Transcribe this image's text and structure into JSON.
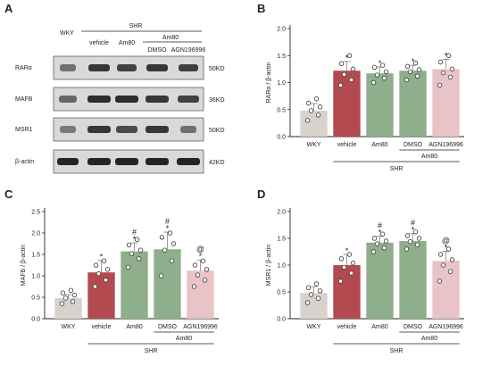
{
  "colors": {
    "WKY": "#d7d2cc",
    "vehicle": "#b24a4f",
    "Am80": "#8fae8b",
    "DMSO": "#8fae8b",
    "AGN196996": "#e8c3c7",
    "dot": "#ffffff",
    "blot_band": "#1a1a1a",
    "blot_bg": "#d9d9d9"
  },
  "panel_letters": [
    "A",
    "B",
    "C",
    "D"
  ],
  "blot": {
    "group_header": "SHR",
    "subgroup_header": "Am80",
    "lane_labels": [
      "WKY",
      "vehicle",
      "Am80",
      "DMSO",
      "AGN196996"
    ],
    "rows": [
      {
        "protein": "RARα",
        "size": "50KD"
      },
      {
        "protein": "MAFB",
        "size": "36KD"
      },
      {
        "protein": "MSR1",
        "size": "50KD"
      },
      {
        "protein": "β-actin",
        "size": "42KD"
      }
    ]
  },
  "chart_data": [
    {
      "type": "bar",
      "panel": "B",
      "categories": [
        "WKY",
        "vehicle",
        "Am80",
        "DMSO",
        "AGN196996"
      ],
      "values": [
        0.48,
        1.22,
        1.17,
        1.22,
        1.25
      ],
      "errors": [
        0.13,
        0.17,
        0.12,
        0.1,
        0.18
      ],
      "points": [
        [
          0.3,
          0.4,
          0.48,
          0.55,
          0.62,
          0.7
        ],
        [
          0.95,
          1.05,
          1.15,
          1.25,
          1.35,
          1.5
        ],
        [
          1.0,
          1.08,
          1.14,
          1.2,
          1.28,
          1.32
        ],
        [
          1.05,
          1.12,
          1.2,
          1.24,
          1.3,
          1.36
        ],
        [
          0.95,
          1.1,
          1.18,
          1.25,
          1.38,
          1.5
        ]
      ],
      "annotations": [
        "",
        "*",
        "*",
        "*",
        "*"
      ],
      "ylabel": "RARα / β-actin",
      "ylim": [
        0.0,
        2.0
      ],
      "yticks": [
        "0.0",
        "0.5",
        "1.0",
        "1.5",
        "2.0"
      ],
      "bracket_label": "Am80",
      "group_label": "SHR"
    },
    {
      "type": "bar",
      "panel": "C",
      "categories": [
        "WKY",
        "vehicle",
        "Am80",
        "DMSO",
        "AGN196996"
      ],
      "values": [
        0.48,
        1.08,
        1.57,
        1.62,
        1.12
      ],
      "errors": [
        0.08,
        0.28,
        0.2,
        0.4,
        0.25
      ],
      "points": [
        [
          0.35,
          0.4,
          0.48,
          0.55,
          0.6,
          0.66
        ],
        [
          0.75,
          0.9,
          1.05,
          1.15,
          1.25,
          1.35
        ],
        [
          1.2,
          1.4,
          1.52,
          1.6,
          1.72,
          1.85
        ],
        [
          1.0,
          1.35,
          1.6,
          1.75,
          1.9,
          2.0
        ],
        [
          0.75,
          0.9,
          1.02,
          1.15,
          1.25,
          1.35
        ]
      ],
      "annotations": [
        "",
        "*",
        "#\n*",
        "#\n*",
        "@\n*"
      ],
      "ylabel": "MAFB / β-actin",
      "ylim": [
        0.0,
        2.5
      ],
      "yticks": [
        "0.0",
        "0.5",
        "1.0",
        "1.5",
        "2.0",
        "2.5"
      ],
      "bracket_label": "Am80",
      "group_label": "SHR"
    },
    {
      "type": "bar",
      "panel": "D",
      "categories": [
        "WKY",
        "vehicle",
        "Am80",
        "DMSO",
        "AGN196996"
      ],
      "values": [
        0.48,
        1.0,
        1.42,
        1.45,
        1.08
      ],
      "errors": [
        0.12,
        0.2,
        0.12,
        0.14,
        0.18
      ],
      "points": [
        [
          0.3,
          0.38,
          0.45,
          0.52,
          0.58,
          0.65
        ],
        [
          0.7,
          0.85,
          0.96,
          1.04,
          1.12,
          1.2
        ],
        [
          1.25,
          1.32,
          1.4,
          1.45,
          1.5,
          1.58
        ],
        [
          1.3,
          1.38,
          1.44,
          1.5,
          1.55,
          1.62
        ],
        [
          0.7,
          0.88,
          1.0,
          1.1,
          1.2,
          1.3
        ]
      ],
      "annotations": [
        "",
        "*",
        "#\n*",
        "#\n*",
        "@\n*"
      ],
      "ylabel": "MSR1 / β-actin",
      "ylim": [
        0.0,
        2.0
      ],
      "yticks": [
        "0.0",
        "0.5",
        "1.0",
        "1.5",
        "2.0"
      ],
      "bracket_label": "Am80",
      "group_label": "SHR"
    }
  ]
}
